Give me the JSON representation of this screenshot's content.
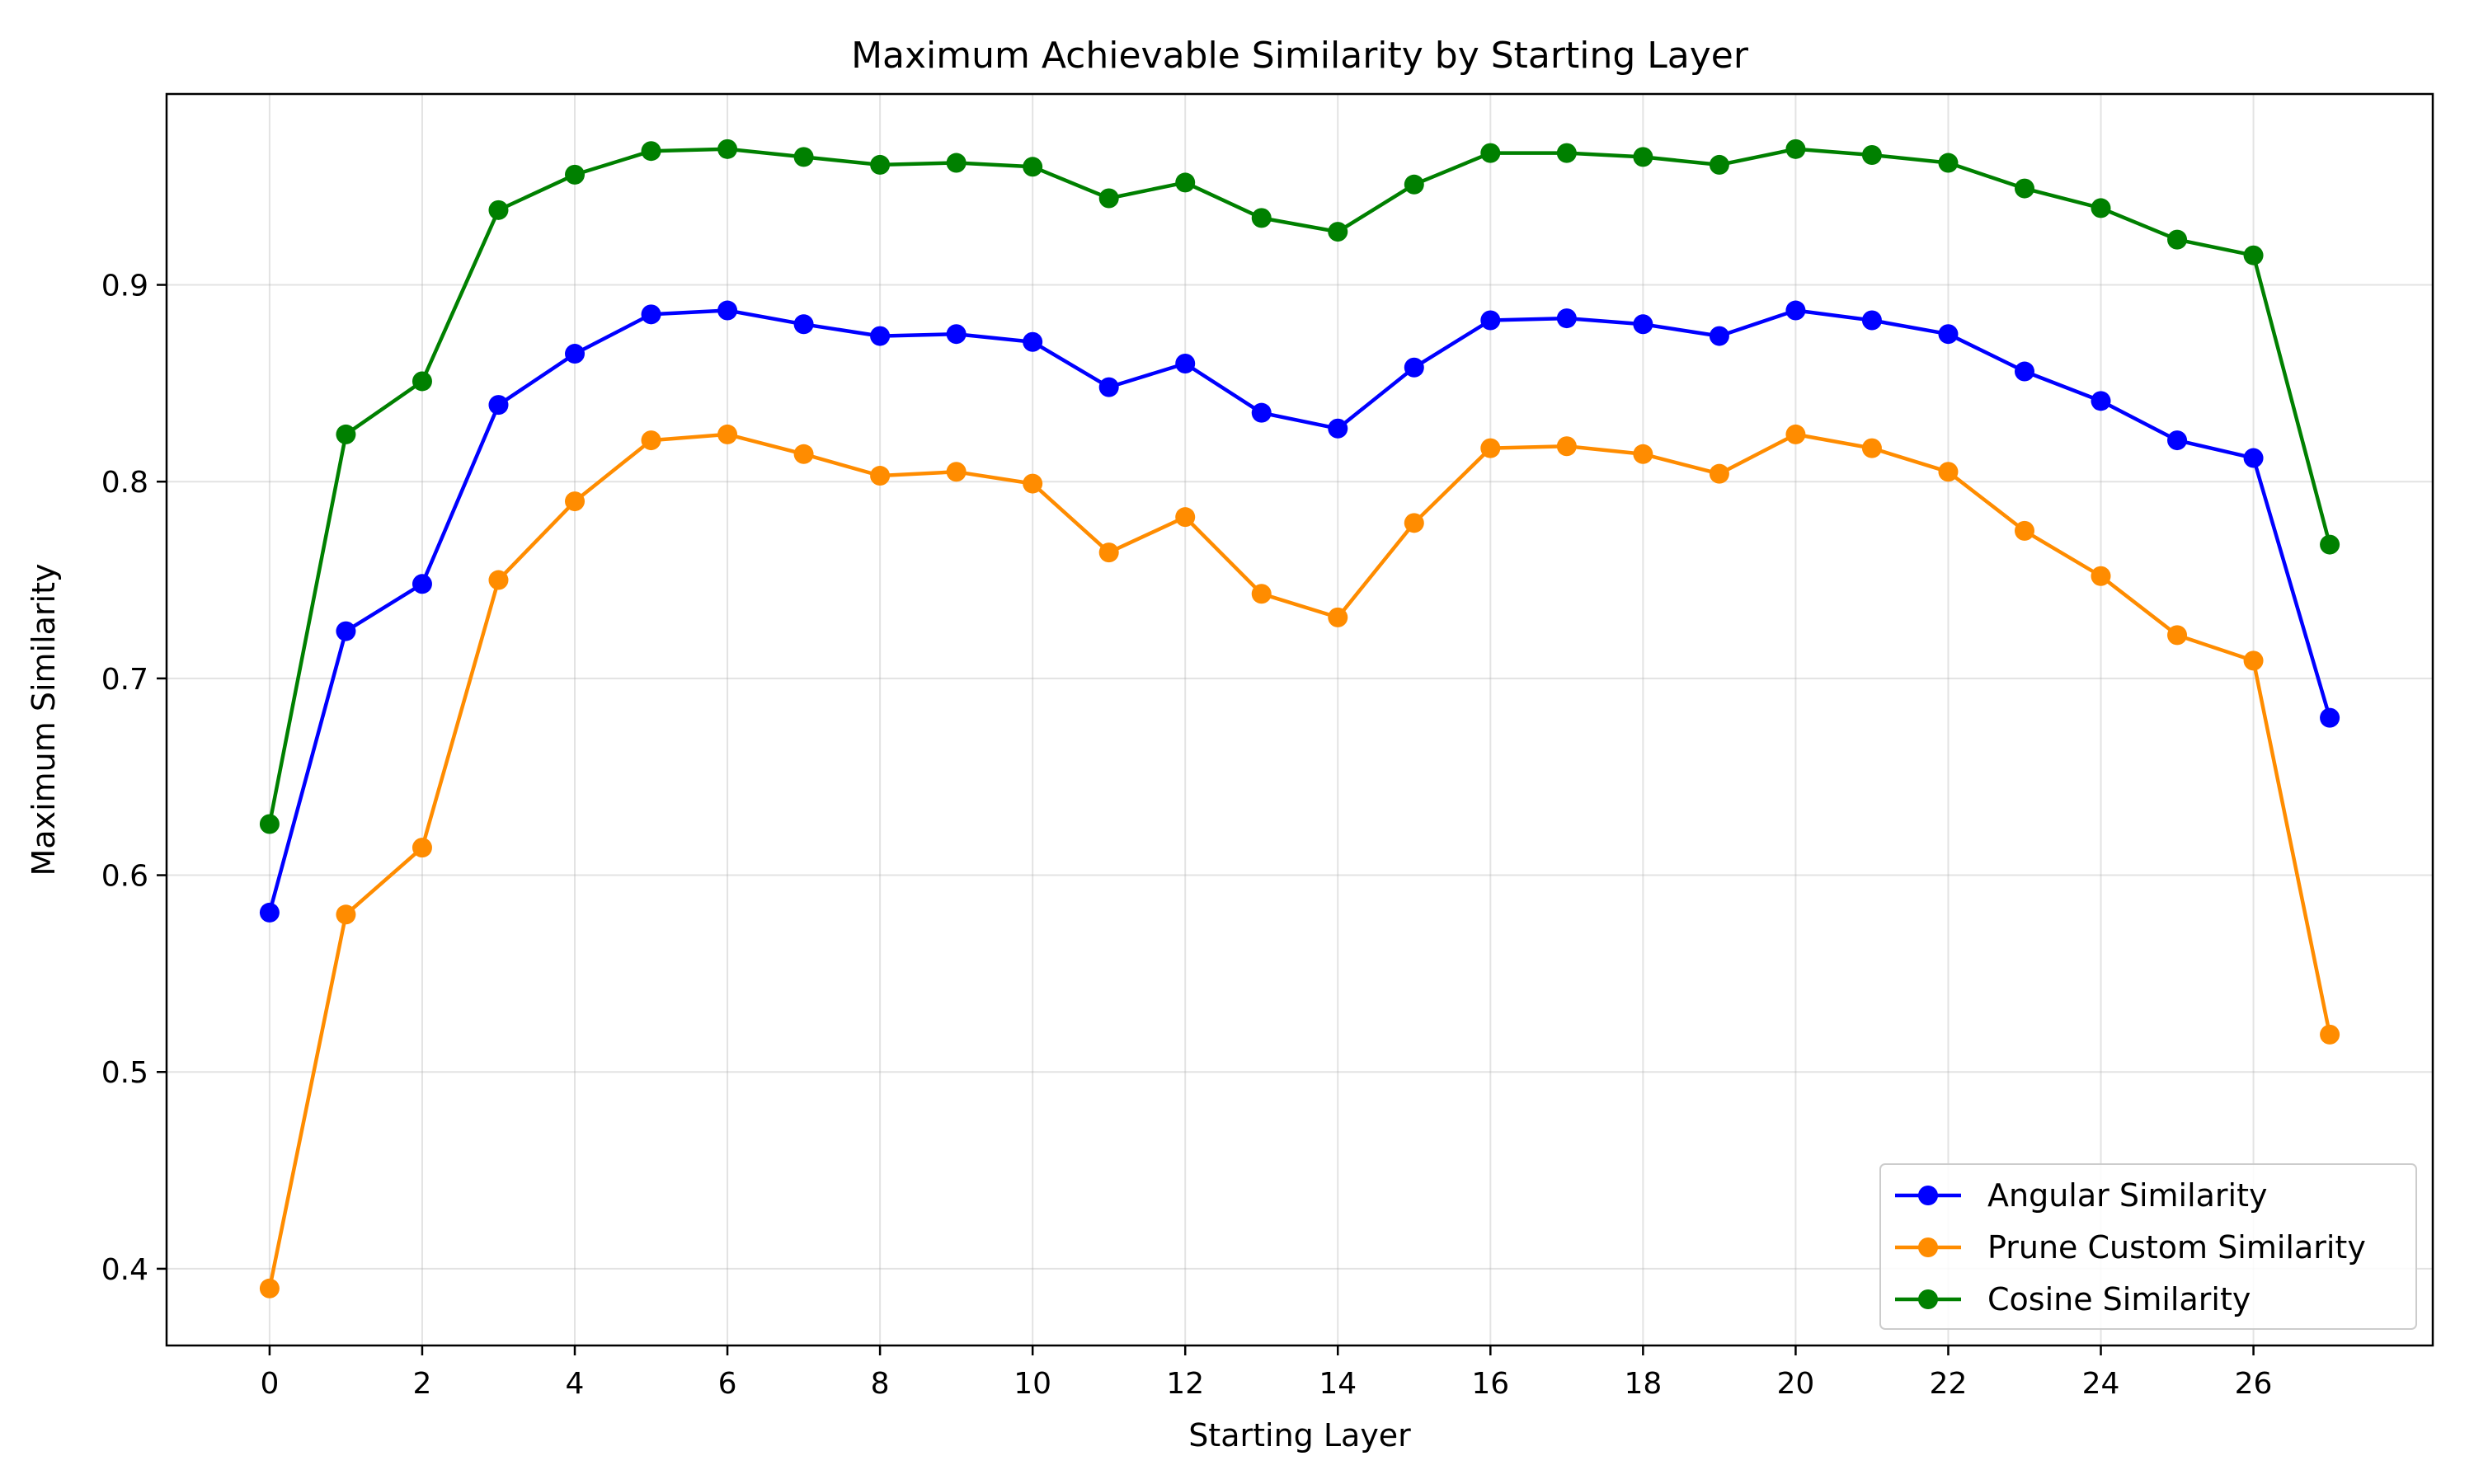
{
  "chart_data": {
    "type": "line",
    "title": "Maximum Achievable Similarity by Starting Layer",
    "xlabel": "Starting Layer",
    "ylabel": "Maximum Similarity",
    "x": [
      0,
      1,
      2,
      3,
      4,
      5,
      6,
      7,
      8,
      9,
      10,
      11,
      12,
      13,
      14,
      15,
      16,
      17,
      18,
      19,
      20,
      21,
      22,
      23,
      24,
      25,
      26,
      27
    ],
    "xlim": [
      -1.35,
      28.35
    ],
    "ylim": [
      0.361,
      0.997
    ],
    "xticks": [
      0,
      2,
      4,
      6,
      8,
      10,
      12,
      14,
      16,
      18,
      20,
      22,
      24,
      26
    ],
    "xtick_labels": [
      "0",
      "2",
      "4",
      "6",
      "8",
      "10",
      "12",
      "14",
      "16",
      "18",
      "20",
      "22",
      "24",
      "26"
    ],
    "yticks": [
      0.4,
      0.5,
      0.6,
      0.7,
      0.8,
      0.9
    ],
    "ytick_labels": [
      "0.4",
      "0.5",
      "0.6",
      "0.7",
      "0.8",
      "0.9"
    ],
    "grid": true,
    "legend_position": "lower-right",
    "series": [
      {
        "name": "Angular Similarity",
        "color": "#0000ff",
        "marker": "circle",
        "values": [
          0.581,
          0.724,
          0.748,
          0.839,
          0.865,
          0.885,
          0.887,
          0.88,
          0.874,
          0.875,
          0.871,
          0.848,
          0.86,
          0.835,
          0.827,
          0.858,
          0.882,
          0.883,
          0.88,
          0.874,
          0.887,
          0.882,
          0.875,
          0.856,
          0.841,
          0.821,
          0.812,
          0.68
        ]
      },
      {
        "name": "Prune Custom Similarity",
        "color": "#ff8c00",
        "marker": "circle",
        "values": [
          0.39,
          0.58,
          0.614,
          0.75,
          0.79,
          0.821,
          0.824,
          0.814,
          0.803,
          0.805,
          0.799,
          0.764,
          0.782,
          0.743,
          0.731,
          0.779,
          0.817,
          0.818,
          0.814,
          0.804,
          0.824,
          0.817,
          0.805,
          0.775,
          0.752,
          0.722,
          0.709,
          0.519
        ]
      },
      {
        "name": "Cosine Similarity",
        "color": "#008000",
        "marker": "circle",
        "values": [
          0.626,
          0.824,
          0.851,
          0.938,
          0.956,
          0.968,
          0.969,
          0.965,
          0.961,
          0.962,
          0.96,
          0.944,
          0.952,
          0.934,
          0.927,
          0.951,
          0.967,
          0.967,
          0.965,
          0.961,
          0.969,
          0.966,
          0.962,
          0.949,
          0.939,
          0.923,
          0.915,
          0.768
        ]
      }
    ]
  }
}
